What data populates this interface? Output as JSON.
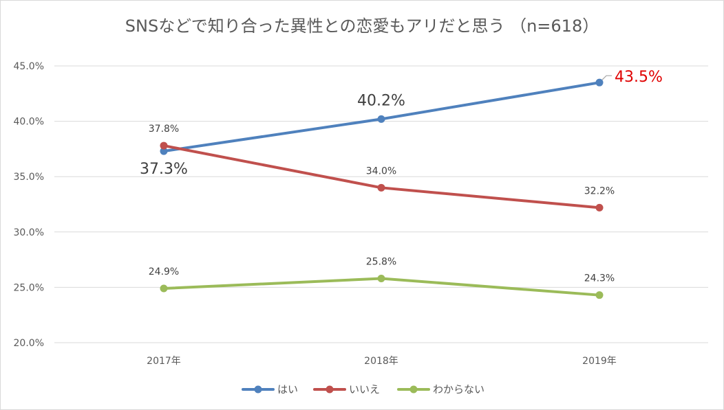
{
  "chart_data": {
    "type": "line",
    "title": "SNSなどで知り合った異性との恋愛もアリだと思う （n=618）",
    "categories": [
      "2017年",
      "2018年",
      "2019年"
    ],
    "ylim": [
      20,
      45
    ],
    "yticks": [
      "20.0%",
      "25.0%",
      "30.0%",
      "35.0%",
      "40.0%",
      "45.0%"
    ],
    "grid": true,
    "legend_position": "bottom",
    "series": [
      {
        "name": "はい",
        "color": "#4f81bd",
        "values": [
          37.3,
          40.2,
          43.5
        ],
        "labels": [
          "37.3%",
          "40.2%",
          "43.5%"
        ]
      },
      {
        "name": "いいえ",
        "color": "#c0504d",
        "values": [
          37.8,
          34.0,
          32.2
        ],
        "labels": [
          "37.8%",
          "34.0%",
          "32.2%"
        ]
      },
      {
        "name": "わからない",
        "color": "#9bbb59",
        "values": [
          24.9,
          25.8,
          24.3
        ],
        "labels": [
          "24.9%",
          "25.8%",
          "24.3%"
        ]
      }
    ]
  }
}
